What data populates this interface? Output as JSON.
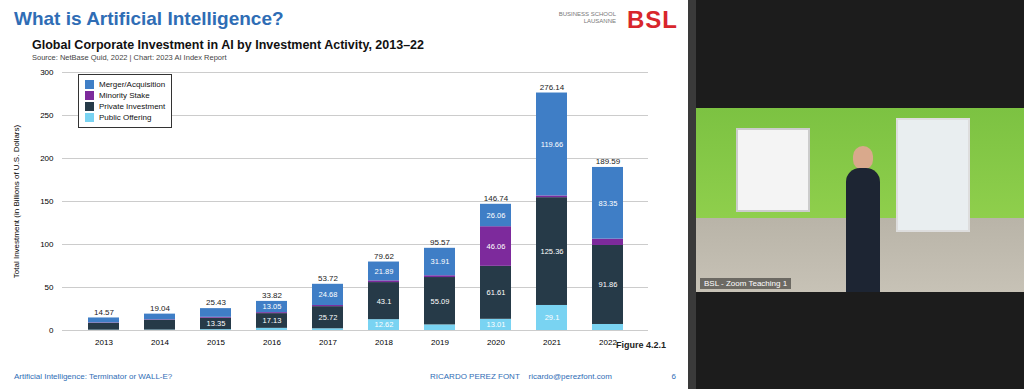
{
  "slide": {
    "title": "What is Artificial Intelligence?",
    "logo": {
      "text": "BSL",
      "subtitle": "BUSINESS SCHOOL LAUSANNE"
    },
    "footer": {
      "left": "Artificial Intelligence: Terminator or WALL-E?",
      "author": "RICARDO PEREZ FONT",
      "email": "ricardo@perezfont.com",
      "page": "6"
    },
    "video": {
      "label": "BSL - Zoom Teaching 1"
    }
  },
  "chart_data": {
    "type": "bar",
    "stacked": true,
    "title": "Global Corporate Investment in AI by Investment Activity, 2013–22",
    "subtitle": "Source: NetBase Quid, 2022 | Chart: 2023 AI Index Report",
    "caption": "Figure 4.2.1",
    "y_label": "Total Investment (in Billions of U.S. Dollars)",
    "categories": [
      "2013",
      "2014",
      "2015",
      "2016",
      "2017",
      "2018",
      "2019",
      "2020",
      "2021",
      "2022"
    ],
    "series": [
      {
        "name": "Merger/Acquisition",
        "color": "#3f7ec6",
        "values": [
          5.67,
          6.54,
          10.08,
          13.05,
          24.68,
          21.89,
          31.91,
          26.06,
          119.66,
          83.35
        ],
        "value_labels": [
          null,
          null,
          null,
          "13.05",
          "24.68",
          "21.89",
          "31.91",
          "26.06",
          "119.66",
          "83.35"
        ]
      },
      {
        "name": "Minority Stake",
        "color": "#7d2a9c",
        "values": [
          0.5,
          0.5,
          1.0,
          1.14,
          1.32,
          2.01,
          2.07,
          46.06,
          2.02,
          7.38
        ],
        "value_labels": [
          null,
          null,
          null,
          null,
          null,
          null,
          null,
          "46.06",
          null,
          null
        ]
      },
      {
        "name": "Private Investment",
        "color": "#263a48",
        "values": [
          8.0,
          11.5,
          13.35,
          17.13,
          25.72,
          43.1,
          55.09,
          61.61,
          125.36,
          91.86
        ],
        "value_labels": [
          null,
          null,
          "13.35",
          "17.13",
          "25.72",
          "43.1",
          "55.09",
          "61.61",
          "125.36",
          "91.86"
        ]
      },
      {
        "name": "Public Offering",
        "color": "#79d3f2",
        "values": [
          0.4,
          0.5,
          1.0,
          2.5,
          2.0,
          12.62,
          6.5,
          13.01,
          29.1,
          7.0
        ],
        "value_labels": [
          null,
          null,
          null,
          null,
          null,
          "12.62",
          null,
          "13.01",
          "29.1",
          null
        ]
      }
    ],
    "totals": [
      14.57,
      19.04,
      25.43,
      33.82,
      53.72,
      79.62,
      95.57,
      146.74,
      276.14,
      189.59
    ],
    "ylim": [
      0,
      300
    ],
    "yticks": [
      0,
      50,
      100,
      150,
      200,
      250,
      300
    ],
    "grid": true,
    "legend": "top-left",
    "data_labels": true
  }
}
